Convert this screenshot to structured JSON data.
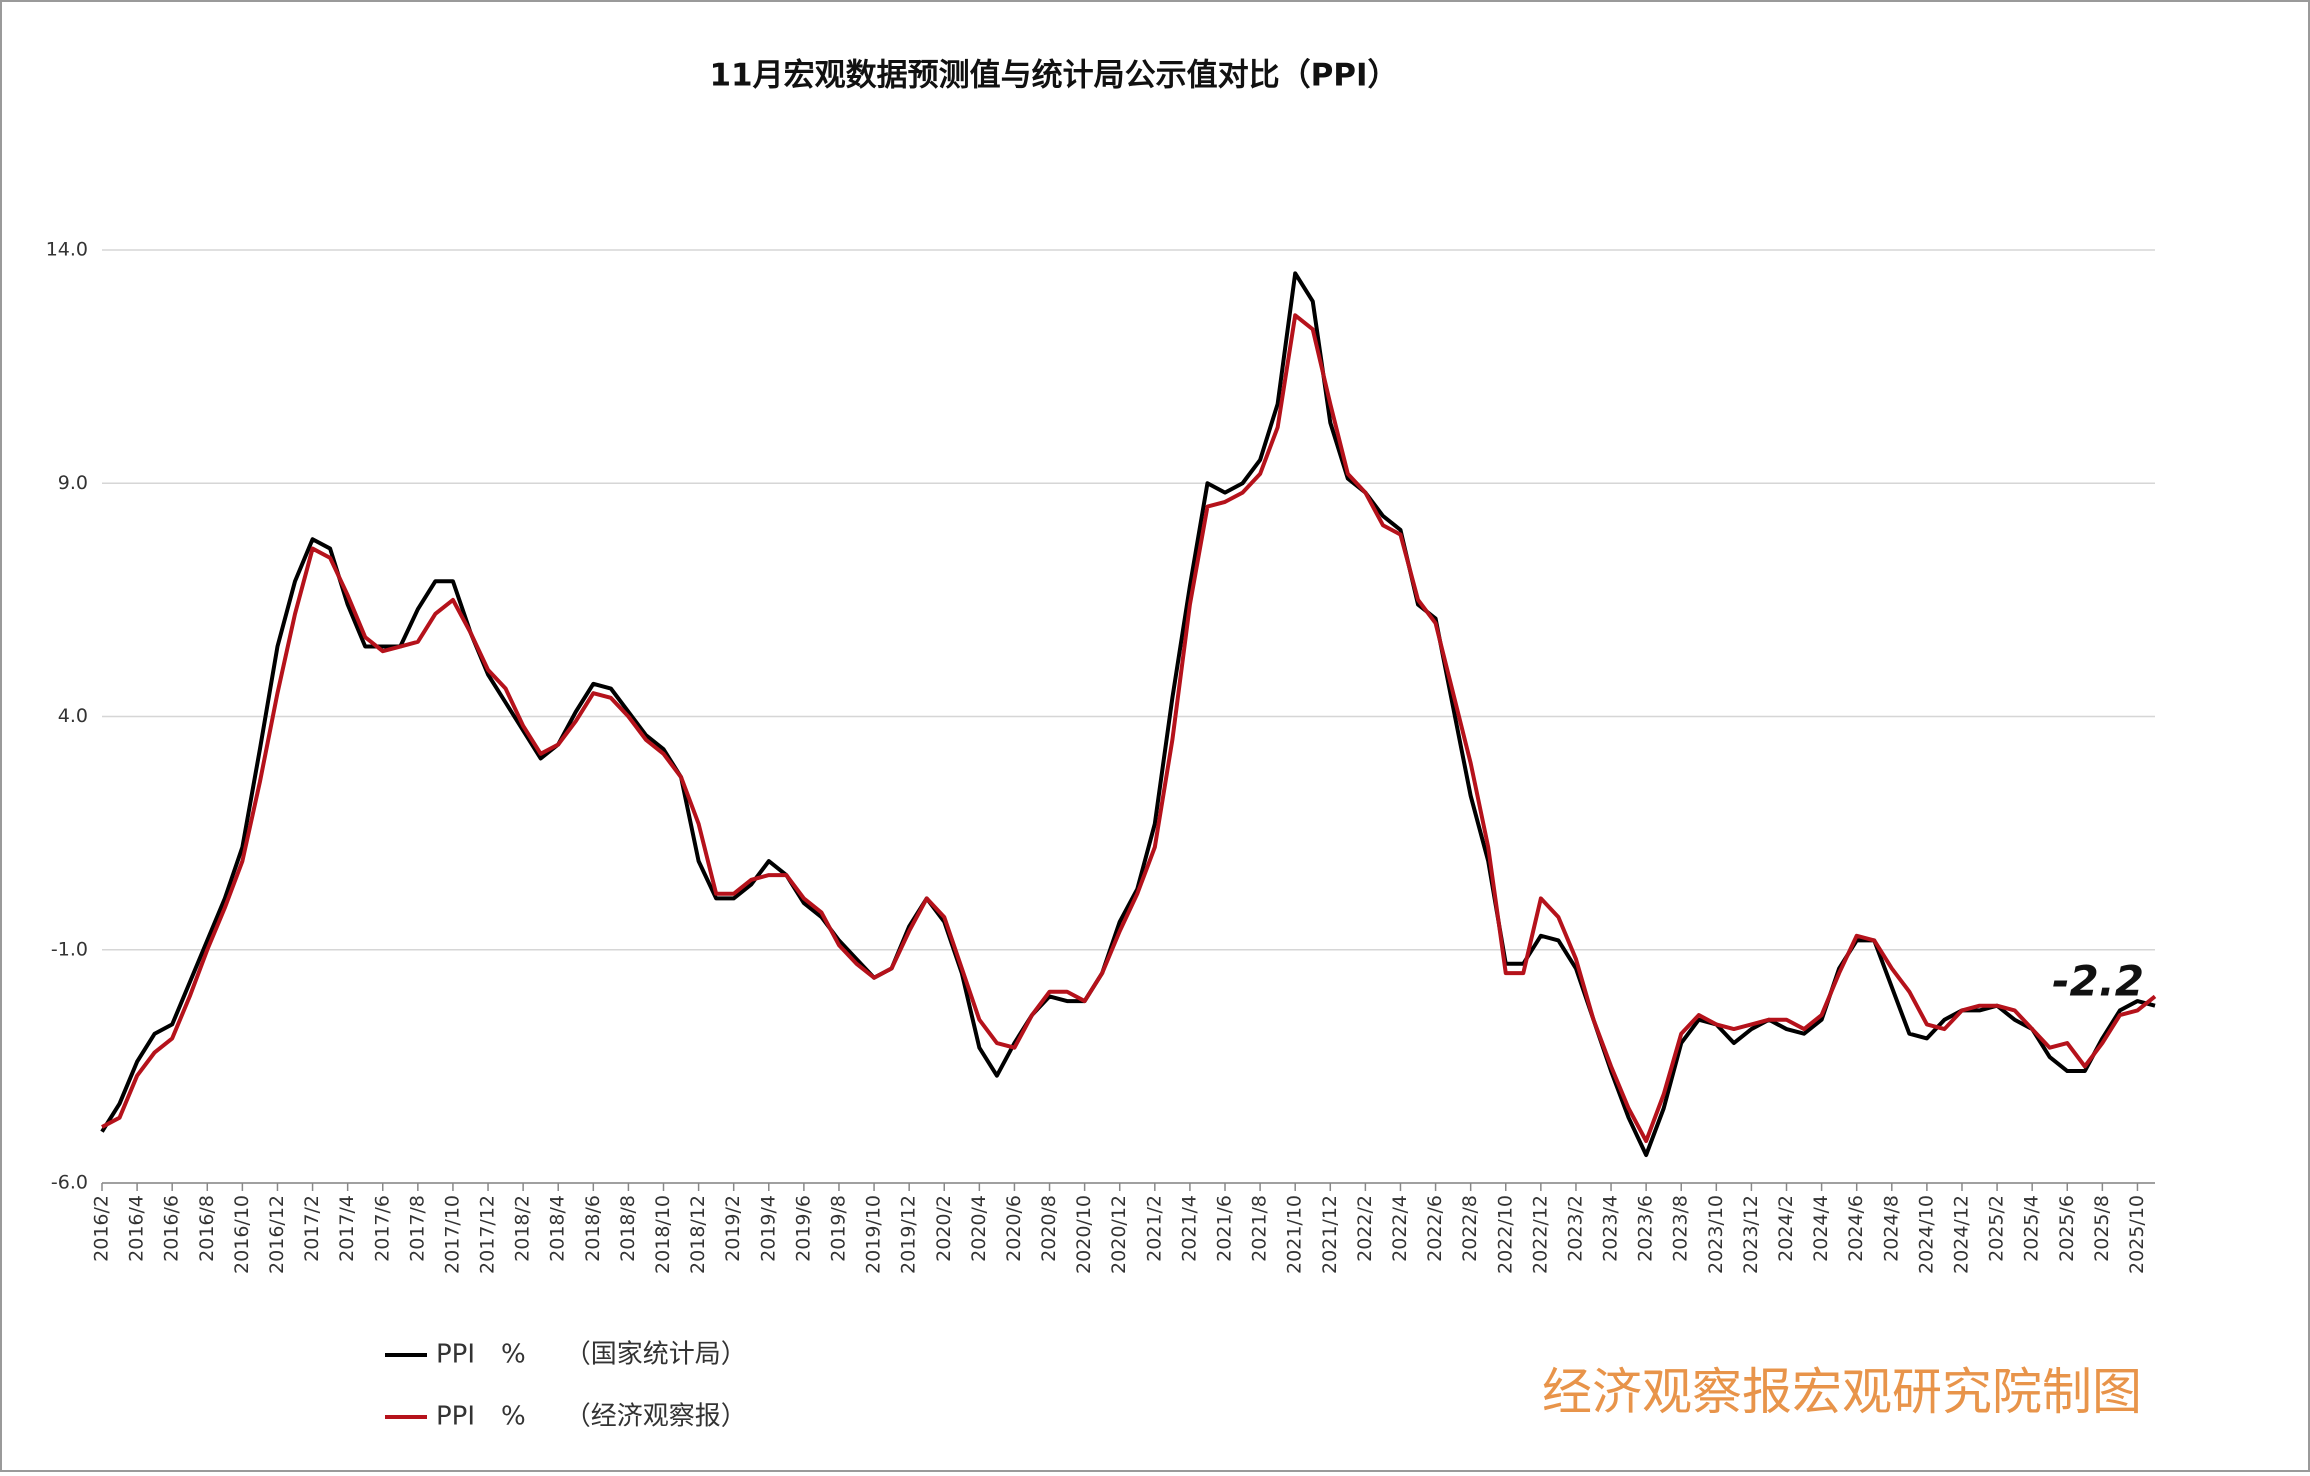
{
  "chart_data": {
    "type": "line",
    "title": "11月宏观数据预测值与统计局公示值对比（PPI）",
    "annotation": "-2.2",
    "watermark": "经济观察报宏观研究院制图",
    "ylim": [
      -6,
      14
    ],
    "yticks": [
      {
        "value": -6,
        "label": "-6.0"
      },
      {
        "value": -1,
        "label": "-1.0"
      },
      {
        "value": 4,
        "label": "4.0"
      },
      {
        "value": 9,
        "label": "9.0"
      },
      {
        "value": 14,
        "label": "14.0"
      }
    ],
    "grid": true,
    "categories": [
      "2016/2",
      null,
      "2016/4",
      null,
      "2016/6",
      null,
      "2016/8",
      null,
      "2016/10",
      null,
      "2016/12",
      null,
      "2017/2",
      null,
      "2017/4",
      null,
      "2017/6",
      null,
      "2017/8",
      null,
      "2017/10",
      null,
      "2017/12",
      null,
      "2018/2",
      null,
      "2018/4",
      null,
      "2018/6",
      null,
      "2018/8",
      null,
      "2018/10",
      null,
      "2018/12",
      null,
      "2019/2",
      null,
      "2019/4",
      null,
      "2019/6",
      null,
      "2019/8",
      null,
      "2019/10",
      null,
      "2019/12",
      null,
      "2020/2",
      null,
      "2020/4",
      null,
      "2020/6",
      null,
      "2020/8",
      null,
      "2020/10",
      null,
      "2020/12",
      null,
      "2021/2",
      null,
      "2021/4",
      null,
      "2021/6",
      null,
      "2021/8",
      null,
      "2021/10",
      null,
      "2021/12",
      null,
      "2022/2",
      null,
      "2022/4",
      null,
      "2022/6",
      null,
      "2022/8",
      null,
      "2022/10",
      null,
      "2022/12",
      null,
      "2023/2",
      null,
      "2023/4",
      null,
      "2023/6",
      null,
      "2023/8",
      null,
      "2023/10",
      null,
      "2023/12",
      null,
      "2024/2",
      null,
      "2024/4",
      null,
      "2024/6",
      null,
      "2024/8",
      null,
      "2024/10",
      null,
      "2024/12",
      null,
      "2025/2",
      null,
      "2025/4",
      null,
      "2025/6",
      null,
      "2025/8",
      null,
      "2025/10",
      null
    ],
    "series": [
      {
        "name": "PPI　%　　（国家统计局）",
        "color": "#000000",
        "values": [
          -4.9,
          -4.3,
          -3.4,
          -2.8,
          -2.6,
          -1.7,
          -0.8,
          0.1,
          1.2,
          3.3,
          5.5,
          6.9,
          7.8,
          7.6,
          6.4,
          5.5,
          5.5,
          5.5,
          6.3,
          6.9,
          6.9,
          5.8,
          4.9,
          4.3,
          3.7,
          3.1,
          3.4,
          4.1,
          4.7,
          4.6,
          4.1,
          3.6,
          3.3,
          2.7,
          0.9,
          0.1,
          0.1,
          0.4,
          0.9,
          0.6,
          0.0,
          -0.3,
          -0.8,
          -1.2,
          -1.6,
          -1.4,
          -0.5,
          0.1,
          -0.4,
          -1.5,
          -3.1,
          -3.7,
          -3.0,
          -2.4,
          -2.0,
          -2.1,
          -2.1,
          -1.5,
          -0.4,
          0.3,
          1.7,
          4.4,
          6.8,
          9.0,
          8.8,
          9.0,
          9.5,
          10.7,
          13.5,
          12.9,
          10.3,
          9.1,
          8.8,
          8.3,
          8.0,
          6.4,
          6.1,
          4.2,
          2.3,
          0.9,
          -1.3,
          -1.3,
          -0.7,
          -0.8,
          -1.4,
          -2.5,
          -3.6,
          -4.6,
          -5.4,
          -4.4,
          -3.0,
          -2.5,
          -2.6,
          -3.0,
          -2.7,
          -2.5,
          -2.7,
          -2.8,
          -2.5,
          -1.4,
          -0.8,
          -0.8,
          -1.8,
          -2.8,
          -2.9,
          -2.5,
          -2.3,
          -2.3,
          -2.2,
          -2.5,
          -2.7,
          -3.3,
          -3.6,
          -3.6,
          -2.9,
          -2.3,
          -2.1,
          -2.2
        ]
      },
      {
        "name": "PPI　%　　（经济观察报）",
        "color": "#b5121b",
        "values": [
          -4.8,
          -4.6,
          -3.7,
          -3.2,
          -2.9,
          -2.0,
          -1.0,
          -0.1,
          0.9,
          2.6,
          4.5,
          6.2,
          7.6,
          7.4,
          6.6,
          5.7,
          5.4,
          5.5,
          5.6,
          6.2,
          6.5,
          5.8,
          5.0,
          4.6,
          3.8,
          3.2,
          3.4,
          3.9,
          4.5,
          4.4,
          4.0,
          3.5,
          3.2,
          2.7,
          1.7,
          0.2,
          0.2,
          0.5,
          0.6,
          0.6,
          0.1,
          -0.2,
          -0.9,
          -1.3,
          -1.6,
          -1.4,
          -0.6,
          0.1,
          -0.3,
          -1.4,
          -2.5,
          -3.0,
          -3.1,
          -2.4,
          -1.9,
          -1.9,
          -2.1,
          -1.5,
          -0.6,
          0.2,
          1.2,
          3.5,
          6.4,
          8.5,
          8.6,
          8.8,
          9.2,
          10.2,
          12.6,
          12.3,
          10.7,
          9.2,
          8.8,
          8.1,
          7.9,
          6.5,
          6.0,
          4.5,
          3.0,
          1.2,
          -1.5,
          -1.5,
          0.1,
          -0.3,
          -1.2,
          -2.5,
          -3.5,
          -4.4,
          -5.1,
          -4.1,
          -2.8,
          -2.4,
          -2.6,
          -2.7,
          -2.6,
          -2.5,
          -2.5,
          -2.7,
          -2.4,
          -1.5,
          -0.7,
          -0.8,
          -1.4,
          -1.9,
          -2.6,
          -2.7,
          -2.3,
          -2.2,
          -2.2,
          -2.3,
          -2.7,
          -3.1,
          -3.0,
          -3.5,
          -3.0,
          -2.4,
          -2.3,
          -2.0
        ]
      }
    ]
  }
}
